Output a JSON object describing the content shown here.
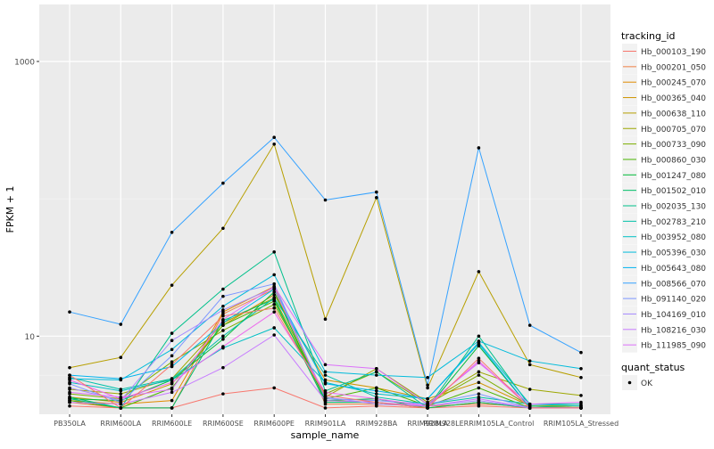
{
  "chart_data": {
    "type": "line",
    "xlabel": "sample_name",
    "ylabel": "FPKM + 1",
    "y_scale": "log10",
    "ylim": [
      2.7,
      2600
    ],
    "y_ticks": [
      {
        "value": 10,
        "label": "10"
      },
      {
        "value": 1000,
        "label": "1000"
      }
    ],
    "grid": true,
    "background": "#ebebeb",
    "legend_position": "right",
    "categories": [
      "PB350LA",
      "RRIM600LA",
      "RRIM600LE",
      "RRIM600SE",
      "RRIM600PE",
      "RRIM901LA",
      "RRIM928BA",
      "RRIM928LA",
      "RRIM928LE",
      "RRIM105LA_Control",
      "RRIM105LA_Stressed"
    ],
    "category_labels": [
      "PB350LA",
      "RRIM600LA",
      "RRIM600LE",
      "RRIM600SE",
      "RRIM600PE",
      "RRIM901LA",
      "RRIM928BA",
      "RRIM928LA",
      "RRIM928LERRIM105LA_Control",
      "",
      "RRIM105LA_Stressed"
    ],
    "series": [
      {
        "name": "Hb_000103_190",
        "color": "#F8766D",
        "values": [
          3.1,
          3.0,
          3.0,
          3.8,
          4.2,
          3.0,
          3.1,
          3.0,
          3.1,
          3.0,
          3.0
        ]
      },
      {
        "name": "Hb_000201_050",
        "color": "#EE8044",
        "values": [
          3.3,
          3.0,
          3.0,
          14.5,
          22.0,
          3.2,
          3.2,
          3.1,
          3.2,
          3.1,
          3.0
        ]
      },
      {
        "name": "Hb_000245_070",
        "color": "#E08B00",
        "values": [
          3.4,
          3.2,
          3.4,
          15.0,
          23.0,
          3.4,
          3.3,
          3.0,
          3.3,
          3.0,
          3.0
        ]
      },
      {
        "name": "Hb_000365_040",
        "color": "#CF9400",
        "values": [
          3.6,
          3.3,
          4.5,
          12.0,
          20.0,
          4.8,
          4.2,
          3.5,
          4.6,
          3.1,
          3.1
        ]
      },
      {
        "name": "Hb_000638_110",
        "color": "#B79F00",
        "values": [
          5.9,
          7.0,
          23.5,
          61.0,
          250.0,
          13.3,
          102.0,
          4.2,
          29.5,
          6.2,
          5.0
        ]
      },
      {
        "name": "Hb_000705_070",
        "color": "#9DA700",
        "values": [
          4.1,
          3.8,
          4.9,
          12.5,
          19.0,
          3.6,
          5.8,
          3.3,
          5.5,
          4.1,
          3.7
        ]
      },
      {
        "name": "Hb_000733_090",
        "color": "#7CAE00",
        "values": [
          3.8,
          3.5,
          6.5,
          11.0,
          17.0,
          3.8,
          5.5,
          3.2,
          5.2,
          3.1,
          3.1
        ]
      },
      {
        "name": "Hb_000860_030",
        "color": "#49B500",
        "values": [
          3.4,
          3.0,
          4.2,
          12.0,
          18.0,
          3.5,
          4.2,
          3.1,
          4.2,
          3.0,
          3.0
        ]
      },
      {
        "name": "Hb_001247_080",
        "color": "#00BA38",
        "values": [
          3.5,
          3.4,
          4.8,
          9.5,
          21.0,
          3.4,
          3.5,
          3.0,
          8.5,
          3.0,
          3.0
        ]
      },
      {
        "name": "Hb_001502_010",
        "color": "#00BE67",
        "values": [
          3.6,
          3.0,
          3.0,
          13.0,
          18.5,
          3.3,
          3.3,
          3.0,
          3.3,
          3.0,
          3.0
        ]
      },
      {
        "name": "Hb_002035_130",
        "color": "#00C08B",
        "values": [
          3.5,
          3.0,
          10.5,
          22.0,
          41.0,
          4.0,
          5.5,
          3.0,
          10.0,
          3.1,
          3.0
        ]
      },
      {
        "name": "Hb_002783_210",
        "color": "#00C1A9",
        "values": [
          5.0,
          4.1,
          4.9,
          10.0,
          19.0,
          5.2,
          3.6,
          3.2,
          3.6,
          3.2,
          3.2
        ]
      },
      {
        "name": "Hb_003952_080",
        "color": "#00BFC4",
        "values": [
          4.6,
          4.0,
          4.8,
          8.2,
          11.5,
          4.6,
          3.8,
          3.5,
          9.0,
          3.2,
          3.1
        ]
      },
      {
        "name": "Hb_005396_030",
        "color": "#00BBDB",
        "values": [
          4.9,
          4.8,
          8.0,
          16.5,
          28.0,
          5.5,
          5.2,
          5.0,
          9.2,
          6.6,
          5.8
        ]
      },
      {
        "name": "Hb_005643_080",
        "color": "#00B4EF",
        "values": [
          5.2,
          4.9,
          6.0,
          12.5,
          22.0,
          4.5,
          4.0,
          3.5,
          8.8,
          3.0,
          3.0
        ]
      },
      {
        "name": "Hb_008566_070",
        "color": "#35A2FF",
        "values": [
          15.0,
          12.2,
          57.0,
          130.0,
          280.0,
          98.0,
          112.0,
          4.4,
          235.0,
          12.0,
          7.6
        ]
      },
      {
        "name": "Hb_091140_020",
        "color": "#7C96FF",
        "values": [
          4.5,
          3.3,
          7.2,
          19.5,
          24.0,
          3.5,
          3.4,
          3.2,
          3.8,
          3.0,
          3.0
        ]
      },
      {
        "name": "Hb_104169_010",
        "color": "#A58AFF",
        "values": [
          4.2,
          3.4,
          9.3,
          15.5,
          22.5,
          3.6,
          3.2,
          3.1,
          3.4,
          3.0,
          3.0
        ]
      },
      {
        "name": "Hb_108216_030",
        "color": "#C77CFF",
        "values": [
          3.3,
          3.2,
          3.9,
          5.9,
          10.2,
          3.4,
          3.3,
          3.1,
          3.5,
          3.0,
          3.0
        ]
      },
      {
        "name": "Hb_111985_090",
        "color": "#DC71FA",
        "values": [
          3.9,
          3.6,
          4.1,
          13.2,
          23.0,
          6.2,
          5.8,
          3.2,
          6.4,
          3.2,
          3.3
        ]
      },
      {
        "name": "",
        "color": "#ED68ED",
        "values": [
          4.8,
          3.5,
          4.6,
          8.4,
          15.0,
          3.9,
          3.5,
          3.1,
          6.6,
          3.0,
          3.0
        ]
      },
      {
        "name": "",
        "color": "#F8766D",
        "values": [
          5.2,
          3.0,
          6.2,
          14.0,
          16.0,
          3.7,
          3.3,
          3.0,
          6.9,
          3.0,
          3.0
        ]
      }
    ],
    "legend": {
      "title": "tracking_id",
      "entries": [
        "Hb_000103_190",
        "Hb_000201_050",
        "Hb_000245_070",
        "Hb_000365_040",
        "Hb_000638_110",
        "Hb_000705_070",
        "Hb_000733_090",
        "Hb_000860_030",
        "Hb_001247_080",
        "Hb_001502_010",
        "Hb_002035_130",
        "Hb_002783_210",
        "Hb_003952_080",
        "Hb_005396_030",
        "Hb_005643_080",
        "Hb_008566_070",
        "Hb_091140_020",
        "Hb_104169_010",
        "Hb_108216_030",
        "Hb_111985_090"
      ],
      "point_legend_title": "quant_status",
      "point_legend_label": "OK"
    }
  }
}
